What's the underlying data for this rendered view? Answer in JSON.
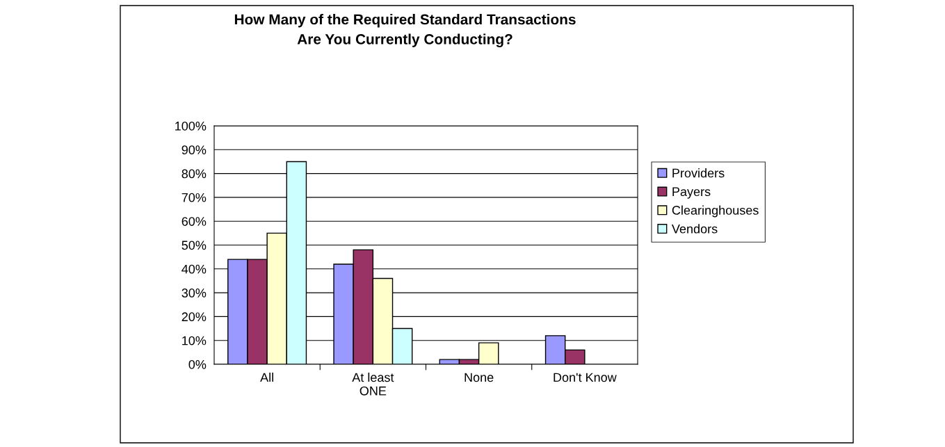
{
  "chart_data": {
    "type": "bar",
    "title": "How Many of the Required Standard Transactions\nAre You Currently Conducting?",
    "categories": [
      "All",
      "At least\nONE",
      "None",
      "Don't Know"
    ],
    "series": [
      {
        "name": "Providers",
        "color": "#9999ff",
        "values": [
          44,
          42,
          2,
          12
        ]
      },
      {
        "name": "Payers",
        "color": "#993366",
        "values": [
          44,
          48,
          2,
          6
        ]
      },
      {
        "name": "Clearinghouses",
        "color": "#ffffcc",
        "values": [
          55,
          36,
          9,
          null
        ]
      },
      {
        "name": "Vendors",
        "color": "#ccffff",
        "values": [
          85,
          15,
          null,
          null
        ]
      }
    ],
    "ylim": [
      0,
      100
    ],
    "yticks": [
      {
        "value": 0,
        "label": "0%"
      },
      {
        "value": 10,
        "label": "10%"
      },
      {
        "value": 20,
        "label": "20%"
      },
      {
        "value": 30,
        "label": "30%"
      },
      {
        "value": 40,
        "label": "40%"
      },
      {
        "value": 50,
        "label": "50%"
      },
      {
        "value": 60,
        "label": "60%"
      },
      {
        "value": 70,
        "label": "70%"
      },
      {
        "value": 80,
        "label": "80%"
      },
      {
        "value": 90,
        "label": "90%"
      },
      {
        "value": 100,
        "label": "100%"
      }
    ],
    "grid": "y",
    "legend": "right"
  }
}
